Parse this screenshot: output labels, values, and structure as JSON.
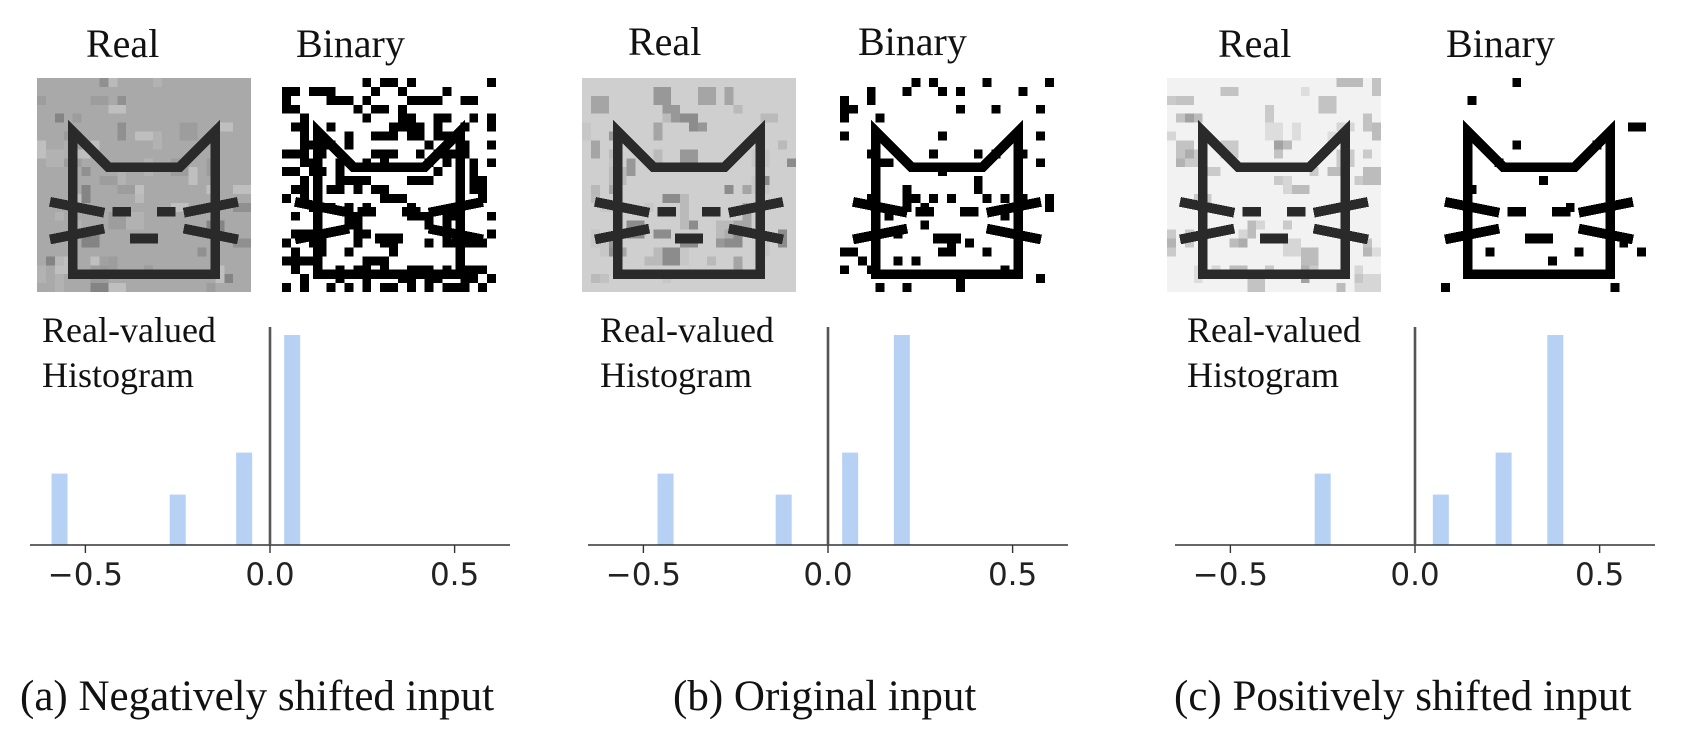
{
  "panels": [
    {
      "real_label": "Real",
      "binary_label": "Binary",
      "hist_annotation": [
        "Real-valued",
        "Histogram"
      ],
      "caption": "(a) Negatively shifted input",
      "image_background": "#a9a9a9"
    },
    {
      "real_label": "Real",
      "binary_label": "Binary",
      "hist_annotation": [
        "Real-valued",
        "Histogram"
      ],
      "caption": "(b) Original input",
      "image_background": "#cfcfcf"
    },
    {
      "real_label": "Real",
      "binary_label": "Binary",
      "hist_annotation": [
        "Real-valued",
        "Histogram"
      ],
      "caption": "(c) Positively shifted input",
      "image_background": "#f2f2f2"
    }
  ],
  "chart_data": [
    {
      "type": "bar",
      "x": [
        -0.57,
        -0.25,
        -0.07,
        0.06
      ],
      "values": [
        0.34,
        0.24,
        0.44,
        1.0
      ],
      "xlim": [
        -0.65,
        0.65
      ],
      "xticks": [
        "−0.5",
        "0.0",
        "0.5"
      ],
      "xtick_values": [
        -0.5,
        0.0,
        0.5
      ],
      "threshold": 0.0,
      "bar_color": "#b7d1f5",
      "title": "",
      "xlabel": "",
      "ylabel": ""
    },
    {
      "type": "bar",
      "x": [
        -0.44,
        -0.12,
        0.06,
        0.2
      ],
      "values": [
        0.34,
        0.24,
        0.44,
        1.0
      ],
      "xlim": [
        -0.65,
        0.65
      ],
      "xticks": [
        "−0.5",
        "0.0",
        "0.5"
      ],
      "xtick_values": [
        -0.5,
        0.0,
        0.5
      ],
      "threshold": 0.0,
      "bar_color": "#b7d1f5",
      "title": "",
      "xlabel": "",
      "ylabel": ""
    },
    {
      "type": "bar",
      "x": [
        -0.25,
        0.07,
        0.24,
        0.38
      ],
      "values": [
        0.34,
        0.24,
        0.44,
        1.0
      ],
      "xlim": [
        -0.65,
        0.65
      ],
      "xticks": [
        "−0.5",
        "0.0",
        "0.5"
      ],
      "xtick_values": [
        -0.5,
        0.0,
        0.5
      ],
      "threshold": 0.0,
      "bar_color": "#b7d1f5",
      "title": "",
      "xlabel": "",
      "ylabel": ""
    }
  ]
}
